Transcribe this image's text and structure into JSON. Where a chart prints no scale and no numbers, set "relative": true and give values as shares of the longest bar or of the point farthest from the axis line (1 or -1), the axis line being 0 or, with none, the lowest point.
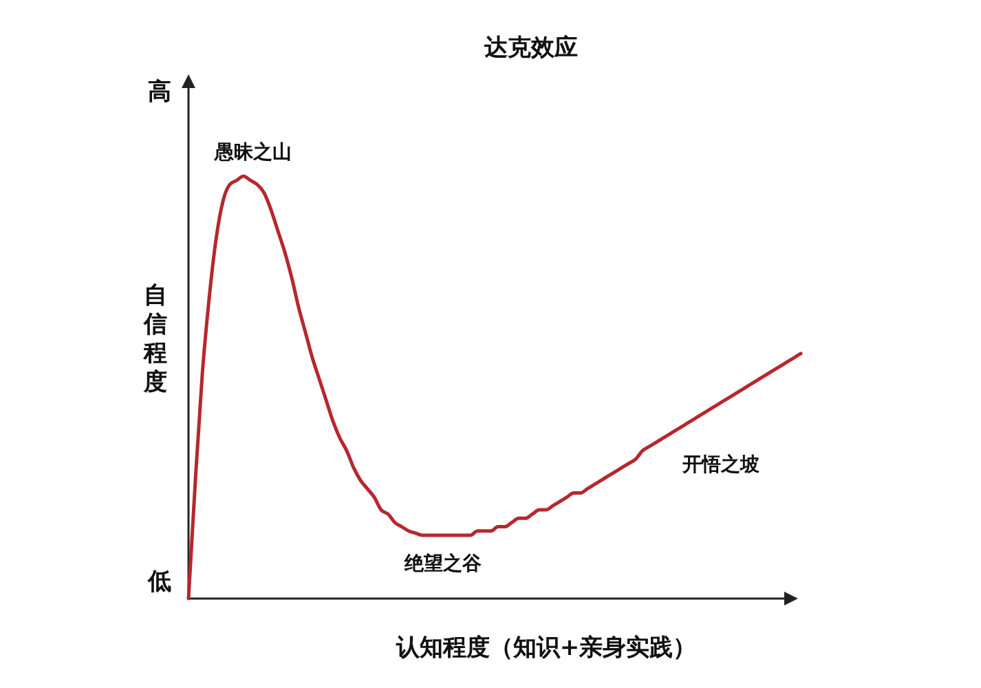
{
  "chart_data": {
    "type": "line",
    "title": "达克效应",
    "xlabel": "认知程度（知识+亲身实践）",
    "ylabel": "自信程度",
    "relative": true,
    "categories": [
      null,
      null,
      null,
      null,
      null,
      null,
      null,
      null,
      null,
      null,
      null,
      null,
      null,
      null,
      null,
      null,
      null,
      null,
      null,
      null,
      null,
      null,
      null,
      null,
      null,
      null,
      null,
      null,
      null,
      null,
      null,
      null,
      null,
      null,
      null,
      null,
      null,
      null,
      null,
      null,
      null,
      null,
      null,
      null,
      null,
      null,
      null,
      null,
      null,
      null,
      null,
      null,
      null,
      null,
      null,
      null,
      null,
      null,
      null,
      null,
      null,
      null,
      null,
      null,
      null,
      null,
      null,
      null,
      null,
      null,
      null,
      null,
      null,
      null,
      null,
      null,
      null,
      null,
      null,
      null,
      null,
      null,
      null,
      null,
      null,
      null,
      null,
      null,
      null,
      null
    ],
    "series": [
      {
        "color": "#b5282e",
        "values": [
          0,
          0.28,
          0.53,
          0.71,
          0.85,
          0.94,
          0.98,
          0.99,
          1,
          0.99,
          0.98,
          0.96,
          0.92,
          0.87,
          0.82,
          0.76,
          0.69,
          0.63,
          0.57,
          0.52,
          0.47,
          0.42,
          0.38,
          0.35,
          0.31,
          0.28,
          0.26,
          0.24,
          0.21,
          0.2,
          0.18,
          0.17,
          0.16,
          0.155,
          0.15,
          0.15,
          0.15,
          0.15,
          0.15,
          0.15,
          0.15,
          0.15,
          0.16,
          0.16,
          0.16,
          0.17,
          0.17,
          0.18,
          0.19,
          0.19,
          0.2,
          0.21,
          0.21,
          0.22,
          0.23,
          0.24,
          0.25,
          0.25,
          0.26,
          0.27,
          0.28,
          0.29,
          0.3,
          0.31,
          0.32,
          0.33,
          0.35,
          0.36,
          0.37,
          0.38,
          0.39,
          0.4,
          0.41,
          0.42,
          0.43,
          0.44,
          0.45,
          0.46,
          0.47,
          0.48,
          0.49,
          0.5,
          0.51,
          0.52,
          0.53,
          0.54,
          0.55,
          0.56,
          0.57,
          0.58
        ]
      }
    ],
    "annotations": [
      "高",
      "低",
      "愚昧之山",
      "绝望之谷",
      "开悟之坡"
    ],
    "marker": "none",
    "line_style": "solid"
  }
}
